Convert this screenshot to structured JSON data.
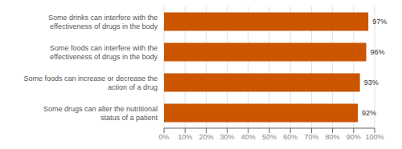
{
  "chart_data": {
    "type": "bar",
    "orientation": "horizontal",
    "categories": [
      "Some drugs can alter the nutritional status of a patient",
      "Some foods can increase or decrease the action of a drug",
      "Some foods can interfere with the effectiveness of drugs in the body",
      "Some drinks can interfere with the effectiveness of drugs in the body"
    ],
    "values": [
      92,
      93,
      96,
      97
    ],
    "value_labels": [
      "92%",
      "93%",
      "96%",
      "97%"
    ],
    "data_labels": true,
    "color": "#CC5500",
    "xlim": [
      0,
      100
    ],
    "xticks": [
      {
        "value": 0,
        "label": "0%"
      },
      {
        "value": 10,
        "label": "10%"
      },
      {
        "value": 20,
        "label": "20%"
      },
      {
        "value": 30,
        "label": "30%"
      },
      {
        "value": 40,
        "label": "40%"
      },
      {
        "value": 50,
        "label": "50%"
      },
      {
        "value": 60,
        "label": "60%"
      },
      {
        "value": 70,
        "label": "70%"
      },
      {
        "value": 80,
        "label": "80%"
      },
      {
        "value": 90,
        "label": "90%"
      },
      {
        "value": 100,
        "label": "100%"
      }
    ],
    "grid": true
  }
}
